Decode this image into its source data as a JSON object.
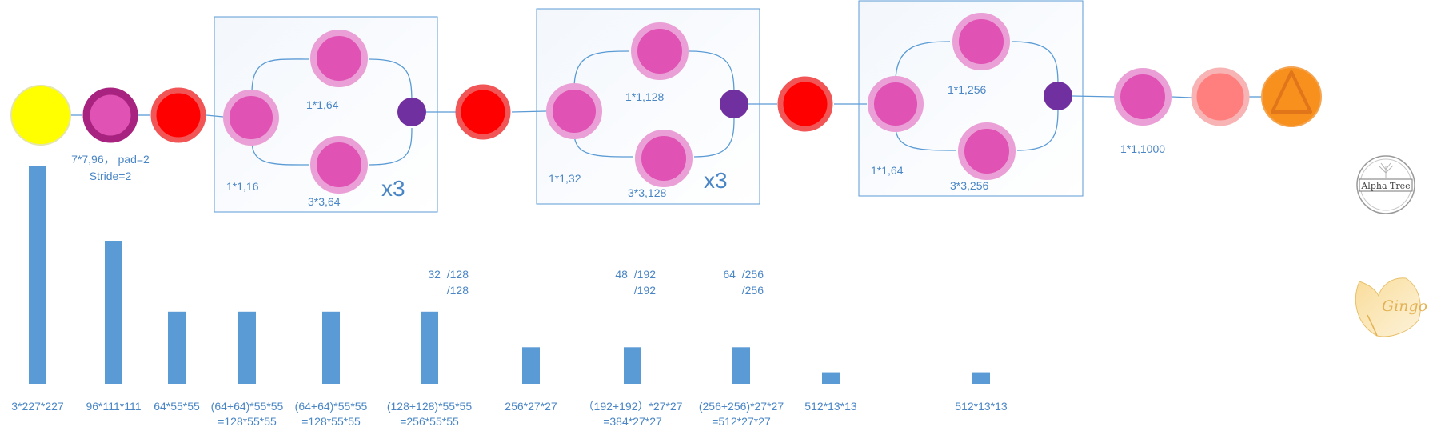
{
  "network": {
    "conv1_label": [
      "7*7,96， pad=2",
      "Stride=2"
    ],
    "fire_groups": [
      {
        "squeeze": "1*1,16",
        "expand1": "1*1,64",
        "expand3": "3*3,64",
        "repeat": "x3"
      },
      {
        "squeeze": "1*1,32",
        "expand1": "1*1,128",
        "expand3": "3*3,128",
        "repeat": "x3"
      },
      {
        "squeeze": "1*1,64",
        "expand1": "1*1,256",
        "expand3": "3*3,256",
        "repeat": ""
      }
    ],
    "final_conv_label": "1*1,1000"
  },
  "channel_notes": [
    [
      "32  /128",
      "/128"
    ],
    [
      "48  /192",
      "/192"
    ],
    [
      "64  /256",
      "/256"
    ]
  ],
  "feature_maps": [
    {
      "lines": [
        "3*227*227"
      ],
      "height": 227
    },
    {
      "lines": [
        "96*111*111"
      ],
      "height": 148
    },
    {
      "lines": [
        "64*55*55"
      ],
      "height": 75
    },
    {
      "lines": [
        "(64+64)*55*55",
        "=128*55*55"
      ],
      "height": 75
    },
    {
      "lines": [
        "(64+64)*55*55",
        "=128*55*55"
      ],
      "height": 75
    },
    {
      "lines": [
        "(128+128)*55*55",
        "=256*55*55"
      ],
      "height": 75
    },
    {
      "lines": [
        "256*27*27"
      ],
      "height": 38
    },
    {
      "lines": [
        "（192+192）*27*27",
        "=384*27*27"
      ],
      "height": 38
    },
    {
      "lines": [
        "(256+256)*27*27",
        "=512*27*27"
      ],
      "height": 38
    },
    {
      "lines": [
        "512*13*13"
      ],
      "height": 12
    },
    {
      "lines": [
        "512*13*13"
      ],
      "height": 12
    }
  ],
  "logos": {
    "alpha_tree": "Alpha Tree",
    "gingo": "Gingo"
  },
  "colors": {
    "input": "#ffff00",
    "conv": "#e052b4",
    "conv_ring": "#eaa0d6",
    "conv1_ring": "#a8237f",
    "pool": "#ff0000",
    "pool_ring": "#f25555",
    "concat": "#7030a0",
    "avgpool": "#ff7f7f",
    "avgpool_ring": "#f8b4b4",
    "softmax": "#f8901e",
    "bars": "#5b9bd5",
    "lines": "#5b9bd5",
    "text": "#4a86c5"
  }
}
